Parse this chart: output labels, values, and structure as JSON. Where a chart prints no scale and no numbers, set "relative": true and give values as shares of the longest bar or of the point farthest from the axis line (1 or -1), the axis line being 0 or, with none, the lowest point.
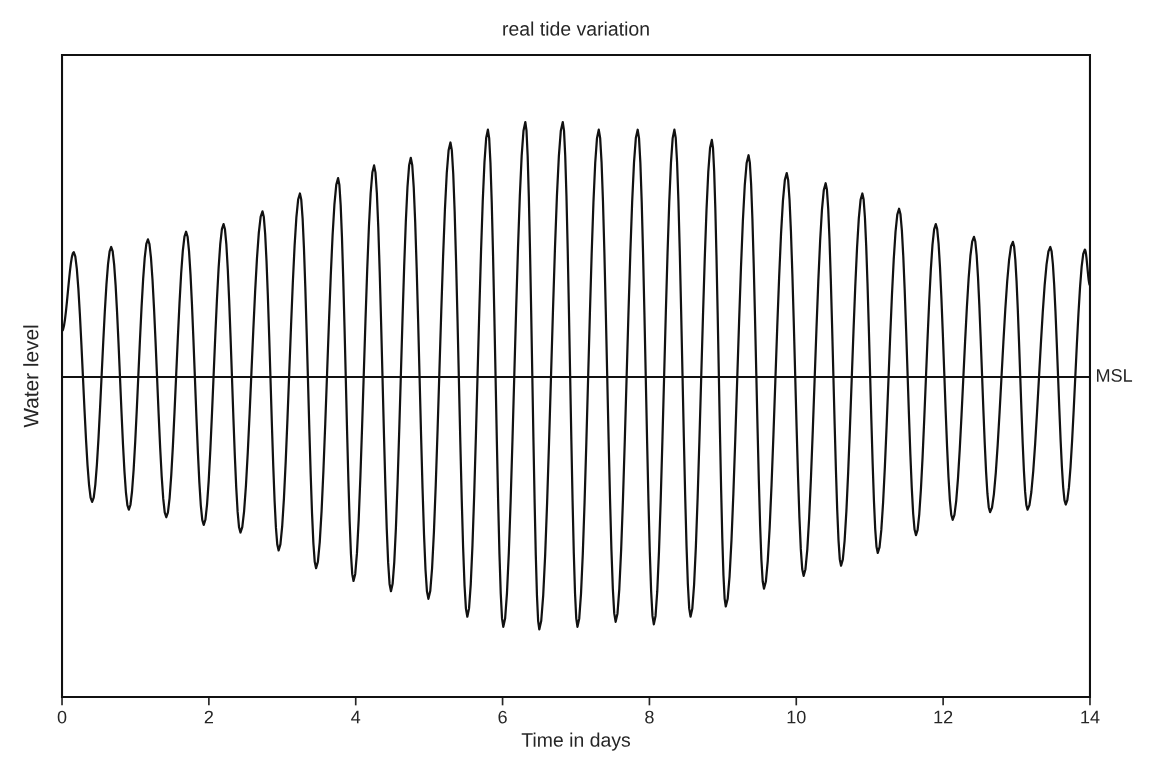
{
  "chart_data": {
    "type": "line",
    "title": "real tide variation",
    "xlabel": "Time in days",
    "ylabel": "Water level",
    "relative": true,
    "xlim": [
      0,
      14
    ],
    "xticks": [
      0,
      2,
      4,
      6,
      8,
      10,
      12,
      14
    ],
    "grid": false,
    "legend": false,
    "ref_lines": [
      {
        "axis": "y",
        "value": 0,
        "label": "MSL",
        "color": "#111111"
      }
    ],
    "series": [
      {
        "color": "#111111",
        "x": [
          0,
          0.16,
          0.41,
          0.67,
          0.91,
          1.17,
          1.42,
          1.69,
          1.93,
          2.2,
          2.43,
          2.73,
          2.95,
          3.24,
          3.46,
          3.76,
          3.97,
          4.25,
          4.48,
          4.75,
          4.99,
          5.29,
          5.52,
          5.8,
          6.01,
          6.31,
          6.5,
          6.82,
          7.02,
          7.31,
          7.54,
          7.84,
          8.06,
          8.34,
          8.56,
          8.85,
          9.04,
          9.35,
          9.56,
          9.87,
          10.1,
          10.4,
          10.61,
          10.9,
          11.11,
          11.4,
          11.63,
          11.9,
          12.13,
          12.42,
          12.64,
          12.95,
          13.15,
          13.46,
          13.67,
          13.93,
          14
        ],
        "values": [
          0.18,
          0.49,
          -0.49,
          0.51,
          -0.52,
          0.54,
          -0.55,
          0.57,
          -0.58,
          0.6,
          -0.61,
          0.65,
          -0.68,
          0.72,
          -0.75,
          0.78,
          -0.8,
          0.83,
          -0.84,
          0.86,
          -0.87,
          0.92,
          -0.94,
          0.97,
          -0.98,
          1.0,
          -0.99,
          1.0,
          -0.98,
          0.97,
          -0.96,
          0.97,
          -0.97,
          0.97,
          -0.94,
          0.93,
          -0.9,
          0.87,
          -0.83,
          0.8,
          -0.78,
          0.76,
          -0.74,
          0.72,
          -0.69,
          0.66,
          -0.62,
          0.6,
          -0.56,
          0.55,
          -0.53,
          0.53,
          -0.52,
          0.51,
          -0.5,
          0.5,
          0.36
        ]
      }
    ]
  }
}
